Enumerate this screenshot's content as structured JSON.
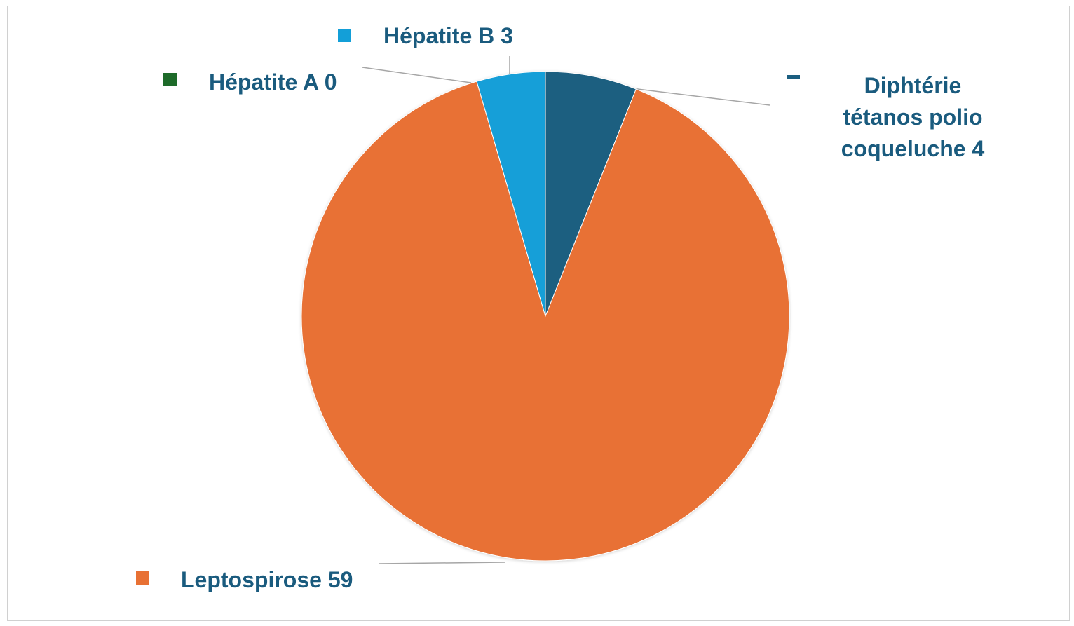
{
  "chart_data": {
    "type": "pie",
    "title": "",
    "start_angle_deg": 0,
    "direction": "clockwise",
    "slices": [
      {
        "name": "Diphtérie tétanos polio coqueluche",
        "value": 4,
        "label": "Diphtérie tétanos polio coqueluche 4",
        "label_lines": [
          "Diphtérie",
          "tétanos polio",
          "coqueluche 4"
        ],
        "color": "#1b5e80"
      },
      {
        "name": "Leptospirose",
        "value": 59,
        "label": "Leptospirose 59",
        "label_lines": [
          "Leptospirose 59"
        ],
        "color": "#e87134"
      },
      {
        "name": "Hépatite A",
        "value": 0,
        "label": "Hépatite A 0",
        "label_lines": [
          "Hépatite A 0"
        ],
        "color": "#1e6b2a"
      },
      {
        "name": "Hépatite B",
        "value": 3,
        "label": "Hépatite B 3",
        "label_lines": [
          "Hépatite B 3"
        ],
        "color": "#139fd8"
      }
    ]
  },
  "colors": {
    "label_text": "#1a5b7e",
    "leader_line": "#a6a6a6",
    "frame_border": "#d0d0d0"
  }
}
